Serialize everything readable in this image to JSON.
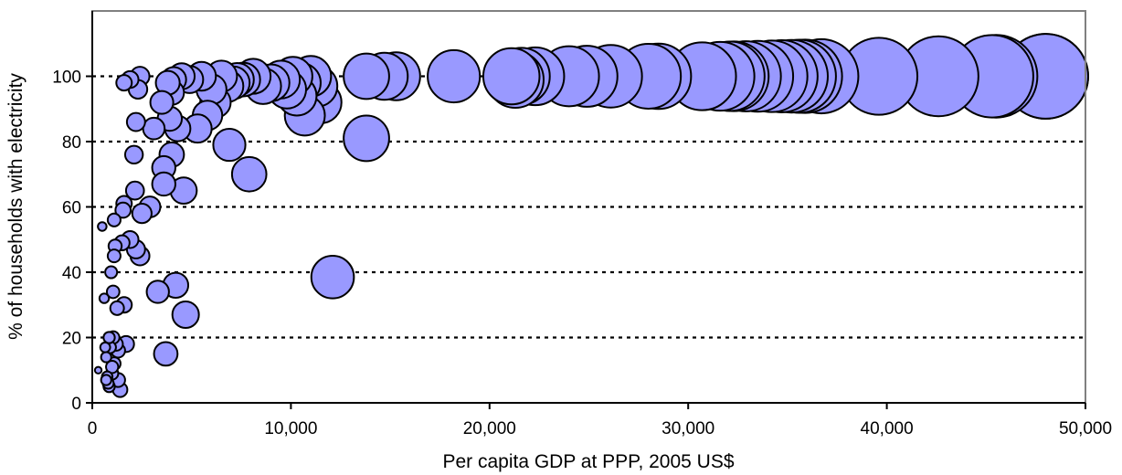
{
  "chart_data": {
    "type": "scatter",
    "title": "",
    "xlabel": "Per capita GDP at PPP, 2005 US$",
    "ylabel": "% of households with electricity",
    "xlim": [
      0,
      50000
    ],
    "ylim": [
      0,
      120
    ],
    "x_ticks": [
      "0",
      "10,000",
      "20,000",
      "30,000",
      "40,000",
      "50,000"
    ],
    "y_ticks": [
      "0",
      "20",
      "40",
      "60",
      "80",
      "100"
    ],
    "grid": "horizontal dotted at 20, 40, 60, 80, 100",
    "legend": "none",
    "bubble_color": "#9999ff",
    "size_note": "bubble area grows with per capita GDP",
    "points": [
      {
        "x": 300,
        "y": 10
      },
      {
        "x": 500,
        "y": 54
      },
      {
        "x": 600,
        "y": 32
      },
      {
        "x": 650,
        "y": 17
      },
      {
        "x": 700,
        "y": 14
      },
      {
        "x": 700,
        "y": 7
      },
      {
        "x": 750,
        "y": 8
      },
      {
        "x": 800,
        "y": 6
      },
      {
        "x": 850,
        "y": 5
      },
      {
        "x": 850,
        "y": 20
      },
      {
        "x": 900,
        "y": 17
      },
      {
        "x": 950,
        "y": 40
      },
      {
        "x": 1000,
        "y": 9
      },
      {
        "x": 1000,
        "y": 11
      },
      {
        "x": 1050,
        "y": 34
      },
      {
        "x": 1050,
        "y": 20
      },
      {
        "x": 1100,
        "y": 56
      },
      {
        "x": 1100,
        "y": 45
      },
      {
        "x": 1100,
        "y": 12
      },
      {
        "x": 1150,
        "y": 48
      },
      {
        "x": 1200,
        "y": 18
      },
      {
        "x": 1250,
        "y": 29
      },
      {
        "x": 1300,
        "y": 16
      },
      {
        "x": 1300,
        "y": 7
      },
      {
        "x": 1400,
        "y": 4
      },
      {
        "x": 1500,
        "y": 49
      },
      {
        "x": 1550,
        "y": 59
      },
      {
        "x": 1600,
        "y": 61
      },
      {
        "x": 1600,
        "y": 30
      },
      {
        "x": 1600,
        "y": 98
      },
      {
        "x": 1700,
        "y": 18
      },
      {
        "x": 1900,
        "y": 99
      },
      {
        "x": 1900,
        "y": 50
      },
      {
        "x": 2100,
        "y": 76
      },
      {
        "x": 2150,
        "y": 65
      },
      {
        "x": 2200,
        "y": 86
      },
      {
        "x": 2200,
        "y": 47
      },
      {
        "x": 2300,
        "y": 96
      },
      {
        "x": 2400,
        "y": 45
      },
      {
        "x": 2400,
        "y": 100
      },
      {
        "x": 2500,
        "y": 58
      },
      {
        "x": 2900,
        "y": 60
      },
      {
        "x": 3100,
        "y": 84
      },
      {
        "x": 3300,
        "y": 34
      },
      {
        "x": 3500,
        "y": 92
      },
      {
        "x": 3600,
        "y": 72
      },
      {
        "x": 3600,
        "y": 67
      },
      {
        "x": 3700,
        "y": 15
      },
      {
        "x": 3800,
        "y": 98
      },
      {
        "x": 3900,
        "y": 87
      },
      {
        "x": 4000,
        "y": 95
      },
      {
        "x": 4000,
        "y": 76
      },
      {
        "x": 4100,
        "y": 99
      },
      {
        "x": 4200,
        "y": 36
      },
      {
        "x": 4300,
        "y": 84
      },
      {
        "x": 4500,
        "y": 100
      },
      {
        "x": 4600,
        "y": 65
      },
      {
        "x": 4700,
        "y": 27
      },
      {
        "x": 4900,
        "y": 99
      },
      {
        "x": 5300,
        "y": 84
      },
      {
        "x": 5500,
        "y": 100
      },
      {
        "x": 5800,
        "y": 88
      },
      {
        "x": 6000,
        "y": 96
      },
      {
        "x": 6200,
        "y": 92
      },
      {
        "x": 6500,
        "y": 100
      },
      {
        "x": 6800,
        "y": 97
      },
      {
        "x": 6900,
        "y": 79
      },
      {
        "x": 7100,
        "y": 98
      },
      {
        "x": 7300,
        "y": 99
      },
      {
        "x": 7600,
        "y": 99
      },
      {
        "x": 7900,
        "y": 70
      },
      {
        "x": 8100,
        "y": 100
      },
      {
        "x": 8600,
        "y": 97
      },
      {
        "x": 9000,
        "y": 98
      },
      {
        "x": 9500,
        "y": 99
      },
      {
        "x": 9800,
        "y": 96
      },
      {
        "x": 10100,
        "y": 100
      },
      {
        "x": 10300,
        "y": 94
      },
      {
        "x": 10500,
        "y": 98
      },
      {
        "x": 10700,
        "y": 88
      },
      {
        "x": 11000,
        "y": 100
      },
      {
        "x": 11300,
        "y": 97
      },
      {
        "x": 11500,
        "y": 92
      },
      {
        "x": 12100,
        "y": 38.5
      },
      {
        "x": 13800,
        "y": 81
      },
      {
        "x": 13800,
        "y": 100
      },
      {
        "x": 14700,
        "y": 100
      },
      {
        "x": 15300,
        "y": 100
      },
      {
        "x": 18200,
        "y": 100
      },
      {
        "x": 21100,
        "y": 100
      },
      {
        "x": 21300,
        "y": 99
      },
      {
        "x": 21600,
        "y": 100
      },
      {
        "x": 22300,
        "y": 100
      },
      {
        "x": 24000,
        "y": 100
      },
      {
        "x": 24900,
        "y": 100
      },
      {
        "x": 26100,
        "y": 100
      },
      {
        "x": 28000,
        "y": 100
      },
      {
        "x": 28500,
        "y": 100
      },
      {
        "x": 30700,
        "y": 100
      },
      {
        "x": 31600,
        "y": 100
      },
      {
        "x": 32100,
        "y": 100
      },
      {
        "x": 32300,
        "y": 100
      },
      {
        "x": 32900,
        "y": 100
      },
      {
        "x": 33500,
        "y": 100
      },
      {
        "x": 34200,
        "y": 100
      },
      {
        "x": 34700,
        "y": 100
      },
      {
        "x": 35200,
        "y": 100
      },
      {
        "x": 35600,
        "y": 100
      },
      {
        "x": 35900,
        "y": 100
      },
      {
        "x": 36700,
        "y": 100
      },
      {
        "x": 39600,
        "y": 100
      },
      {
        "x": 42600,
        "y": 100
      },
      {
        "x": 45300,
        "y": 100
      },
      {
        "x": 45500,
        "y": 100
      },
      {
        "x": 48000,
        "y": 100
      },
      {
        "x": 48000,
        "y": 100
      }
    ]
  }
}
